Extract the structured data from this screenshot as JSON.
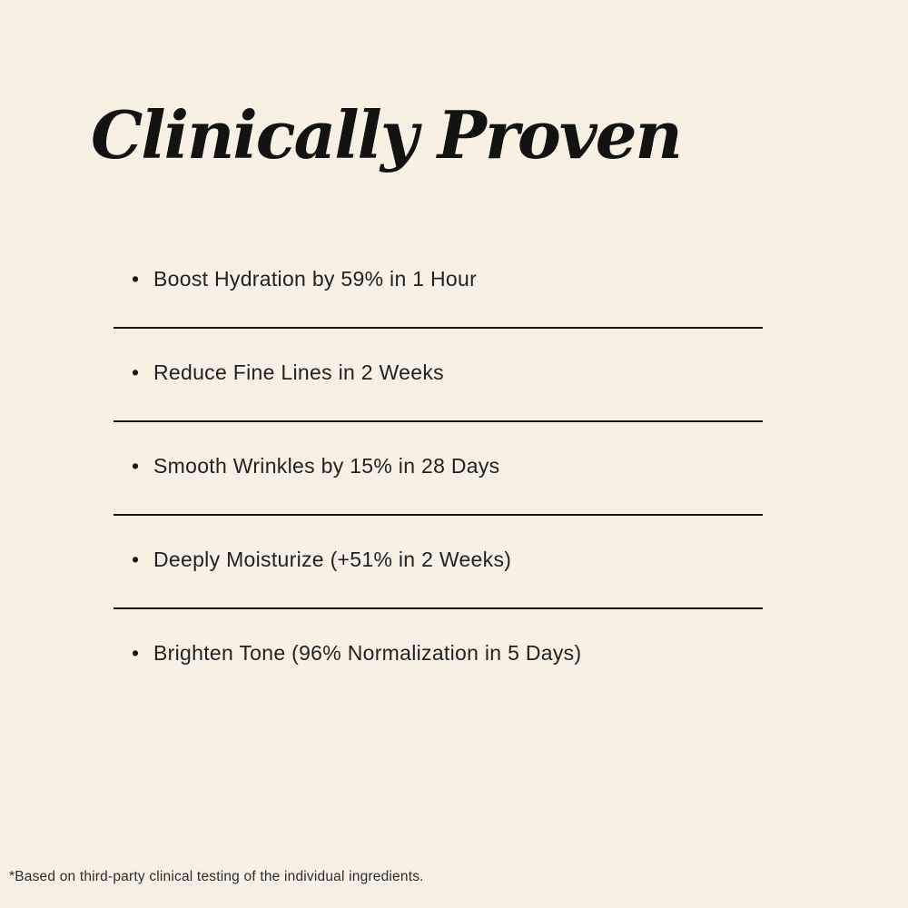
{
  "page": {
    "background_color": "#f7f0e3",
    "title_color": "#131313",
    "text_color": "#222222",
    "divider_color": "#161616"
  },
  "title": "Clinically Proven",
  "list": {
    "bullet_glyph": "•",
    "items": [
      {
        "text": "Boost Hydration by 59% in 1 Hour"
      },
      {
        "text": "Reduce Fine Lines in 2 Weeks"
      },
      {
        "text": "Smooth Wrinkles by 15% in 28 Days"
      },
      {
        "text": "Deeply Moisturize (+51% in 2 Weeks)"
      },
      {
        "text": "Brighten Tone (96% Normalization in 5 Days)"
      }
    ]
  },
  "footnote": "*Based on third-party clinical testing of the individual ingredients."
}
